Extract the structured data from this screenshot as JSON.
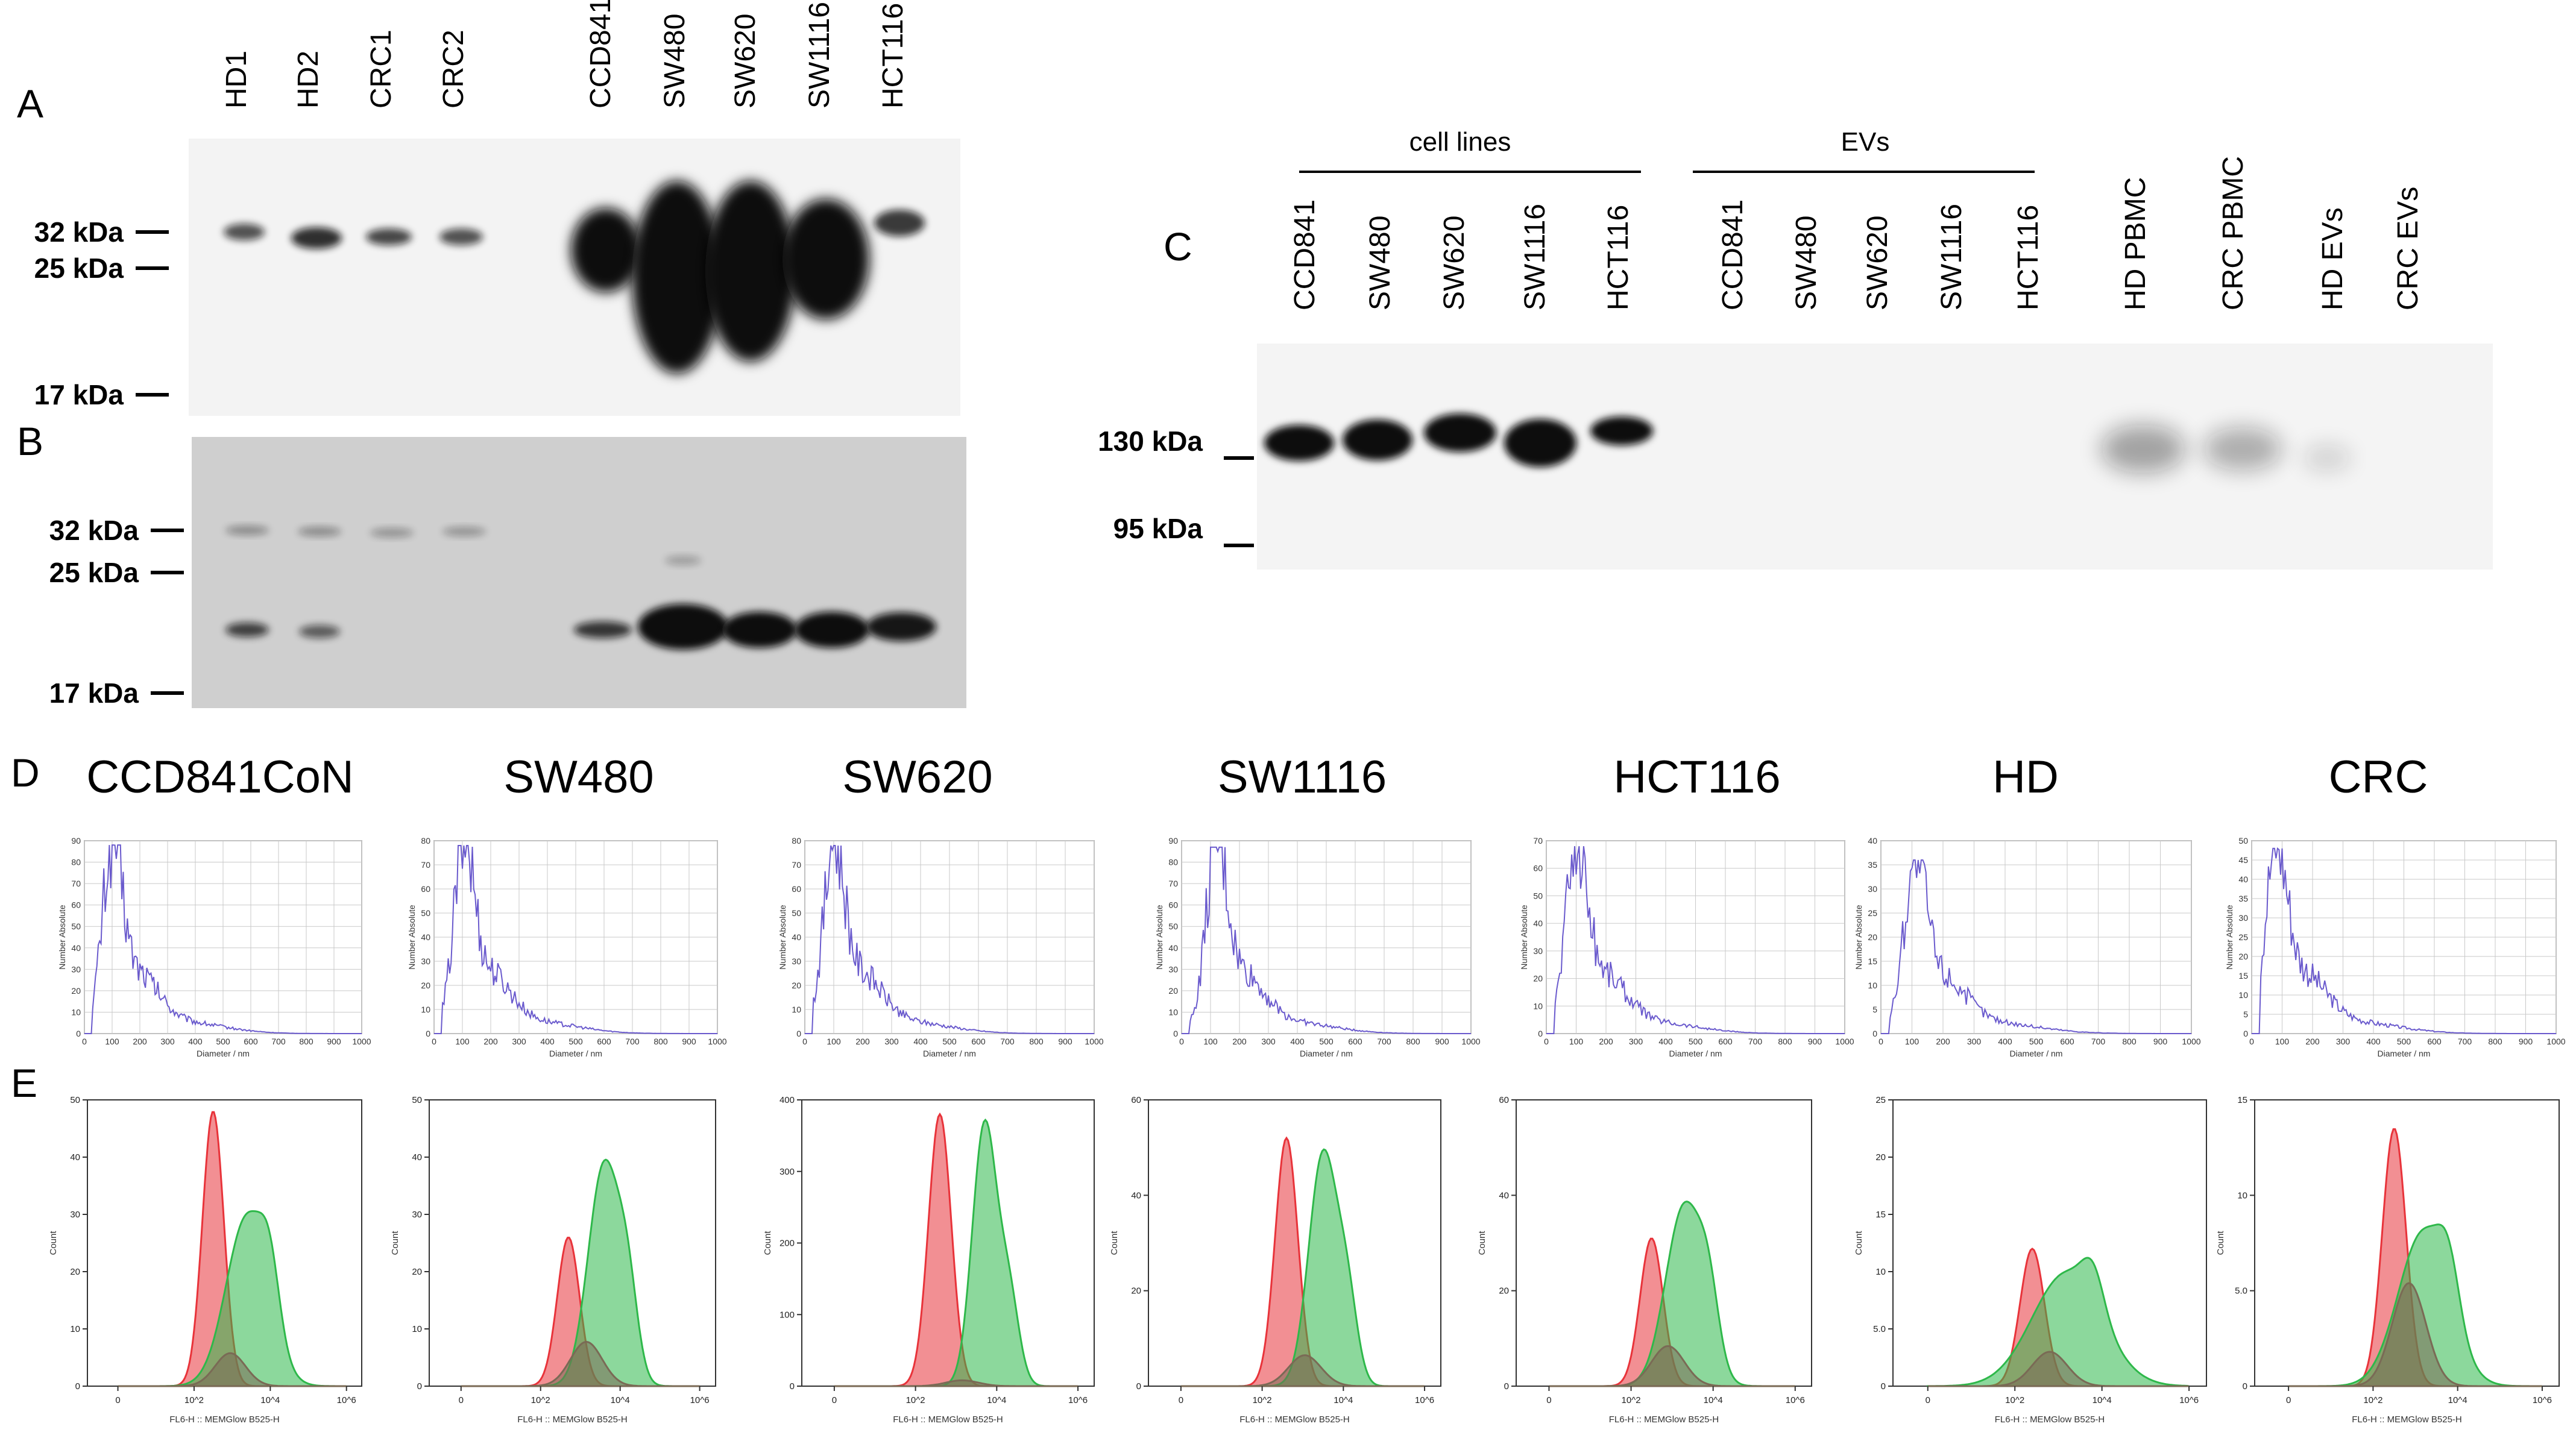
{
  "panels": {
    "A": {
      "letter": "A",
      "lanes": [
        "HD1",
        "HD2",
        "CRC1",
        "CRC2",
        "CCD841",
        "SW480",
        "SW620",
        "SW1116",
        "HCT116"
      ],
      "markers": [
        "32 kDa",
        "25 kDa",
        "17 kDa"
      ]
    },
    "B": {
      "letter": "B",
      "markers": [
        "32 kDa",
        "25 kDa",
        "17 kDa"
      ]
    },
    "C": {
      "letter": "C",
      "groups": [
        "cell lines",
        "EVs"
      ],
      "lanes": [
        "CCD841",
        "SW480",
        "SW620",
        "SW1116",
        "HCT116",
        "CCD841",
        "SW480",
        "SW620",
        "SW1116",
        "HCT116",
        "HD PBMC",
        "CRC PBMC",
        "HD EVs",
        "CRC EVs"
      ],
      "markers": [
        "130 kDa",
        "95 kDa"
      ]
    },
    "D": {
      "letter": "D"
    },
    "E": {
      "letter": "E"
    }
  },
  "samples": [
    "CCD841CoN",
    "SW480",
    "SW620",
    "SW1116",
    "HCT116",
    "HD",
    "CRC"
  ],
  "chart_data": [
    {
      "panel": "D",
      "type": "line",
      "xlabel": "Diameter / nm",
      "ylabel": "Number Absolute",
      "x_ticks": [
        0,
        100,
        200,
        300,
        400,
        500,
        600,
        700,
        800,
        900,
        1000
      ],
      "grid": true,
      "color": "#6a5acd",
      "charts": [
        {
          "sample": "CCD841CoN",
          "ylim": [
            0,
            90
          ],
          "y_ticks": [
            0,
            10,
            20,
            30,
            40,
            50,
            60,
            70,
            80,
            90
          ],
          "peak_x": 100,
          "peak_y": 88
        },
        {
          "sample": "SW480",
          "ylim": [
            0,
            80
          ],
          "y_ticks": [
            0,
            10,
            20,
            30,
            40,
            50,
            60,
            70,
            80
          ],
          "peak_x": 105,
          "peak_y": 78
        },
        {
          "sample": "SW620",
          "ylim": [
            0,
            80
          ],
          "y_ticks": [
            0,
            10,
            20,
            30,
            40,
            50,
            60,
            70,
            80
          ],
          "peak_x": 100,
          "peak_y": 78
        },
        {
          "sample": "SW1116",
          "ylim": [
            0,
            90
          ],
          "y_ticks": [
            0,
            10,
            20,
            30,
            40,
            50,
            60,
            70,
            80,
            90
          ],
          "peak_x": 120,
          "peak_y": 87
        },
        {
          "sample": "HCT116",
          "ylim": [
            0,
            70
          ],
          "y_ticks": [
            0,
            10,
            20,
            30,
            40,
            50,
            60,
            70
          ],
          "peak_x": 100,
          "peak_y": 68
        },
        {
          "sample": "HD",
          "ylim": [
            0,
            40
          ],
          "y_ticks": [
            0,
            5,
            10,
            15,
            20,
            25,
            30,
            35,
            40
          ],
          "peak_x": 110,
          "peak_y": 36
        },
        {
          "sample": "CRC",
          "ylim": [
            0,
            50
          ],
          "y_ticks": [
            0,
            5,
            10,
            15,
            20,
            25,
            30,
            35,
            40,
            45,
            50
          ],
          "peak_x": 80,
          "peak_y": 48
        }
      ]
    },
    {
      "panel": "E",
      "type": "area",
      "xlabel": "FL6-H :: MEMGlow B525-H",
      "ylabel": "Count",
      "x_ticks": [
        "0",
        "10^2",
        "10^4",
        "10^6"
      ],
      "series_colors": {
        "red": "#e8333a",
        "green": "#2eb84a",
        "gray": "#7a6a55"
      },
      "charts": [
        {
          "sample": "CCD841CoN",
          "ylim": [
            0,
            50
          ],
          "y_ticks": [
            "0",
            "10",
            "20",
            "30",
            "40",
            "50"
          ],
          "red_peak": 48,
          "green_peak": 33
        },
        {
          "sample": "SW480",
          "ylim": [
            0,
            50
          ],
          "y_ticks": [
            "0",
            "10",
            "20",
            "30",
            "40",
            "50"
          ],
          "red_peak": 26,
          "green_peak": 43
        },
        {
          "sample": "SW620",
          "ylim": [
            0,
            400
          ],
          "y_ticks": [
            "0",
            "100",
            "200",
            "300",
            "400"
          ],
          "red_peak": 380,
          "green_peak": 405
        },
        {
          "sample": "SW1116",
          "ylim": [
            0,
            60
          ],
          "y_ticks": [
            "0",
            "20",
            "40",
            "60"
          ],
          "red_peak": 52,
          "green_peak": 54
        },
        {
          "sample": "HCT116",
          "ylim": [
            0,
            60
          ],
          "y_ticks": [
            "0",
            "20",
            "40",
            "60"
          ],
          "red_peak": 31,
          "green_peak": 42
        },
        {
          "sample": "HD",
          "ylim": [
            0,
            25
          ],
          "y_ticks": [
            "0",
            "5.0",
            "10",
            "15",
            "20",
            "25"
          ],
          "red_peak": 12,
          "green_peak": 11
        },
        {
          "sample": "CRC",
          "ylim": [
            0,
            15
          ],
          "y_ticks": [
            "0",
            "5.0",
            "10",
            "15"
          ],
          "red_peak": 13.5,
          "green_peak": 9
        }
      ]
    }
  ]
}
